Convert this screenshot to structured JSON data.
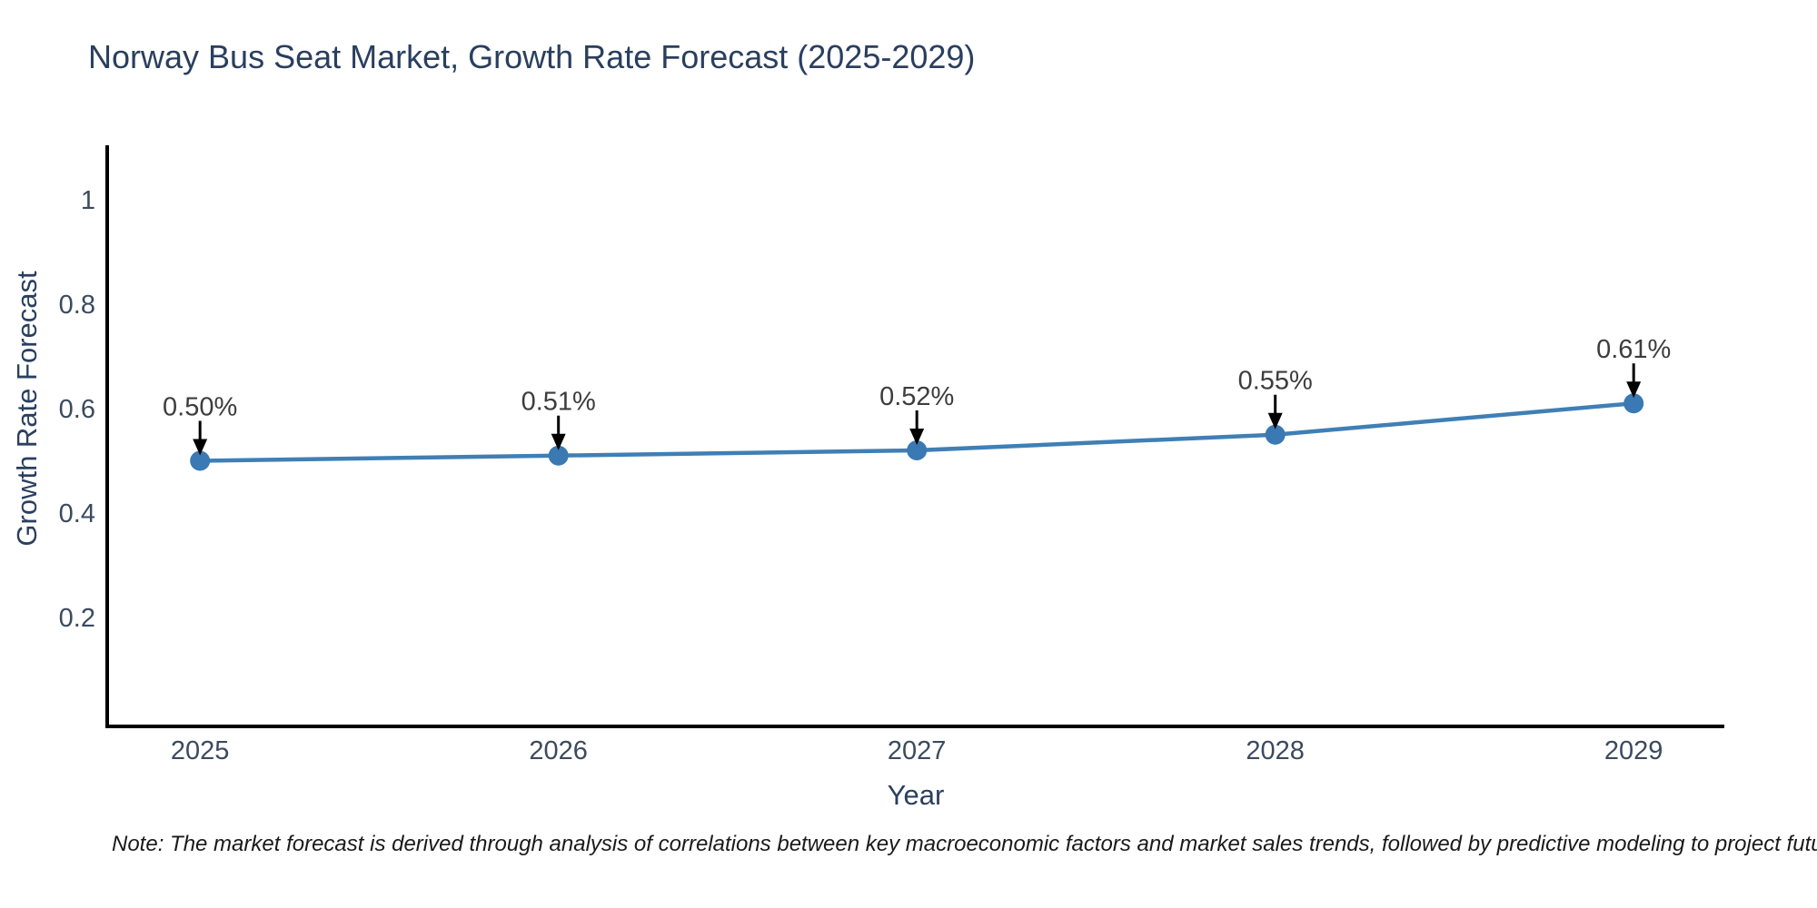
{
  "chart_data": {
    "type": "line",
    "title": "Norway Bus Seat Market, Growth Rate Forecast (2025-2029)",
    "xlabel": "Year",
    "ylabel": "Growth Rate Forecast",
    "x": [
      2025,
      2026,
      2027,
      2028,
      2029
    ],
    "x_tick_labels": [
      "2025",
      "2026",
      "2027",
      "2028",
      "2029"
    ],
    "series": [
      {
        "name": "Growth Rate Forecast",
        "values": [
          0.5,
          0.51,
          0.52,
          0.55,
          0.61
        ]
      }
    ],
    "point_labels": [
      "0.50%",
      "0.51%",
      "0.52%",
      "0.55%",
      "0.61%"
    ],
    "yticks": [
      0.2,
      0.4,
      0.6,
      0.8,
      1
    ],
    "ytick_labels": [
      "0.2",
      "0.4",
      "0.6",
      "0.8",
      "1"
    ],
    "ylim": [
      -0.0087,
      1.1043
    ],
    "xlim": [
      2024.741,
      2029.253
    ],
    "grid": false,
    "legend": "none",
    "colors": {
      "line": "#407fb5",
      "marker": "#3a79b3",
      "axis_line": "#000000",
      "title_text": "#2a3f5f",
      "tick_text": "#3b4a5f",
      "annotation_text": "#3d3d3d",
      "annotation_arrow": "#000000"
    }
  },
  "note": {
    "text": "Note: The market forecast is derived through analysis of correlations between key macroeconomic factors and market sales trends, followed by predictive modeling to project future sales"
  }
}
